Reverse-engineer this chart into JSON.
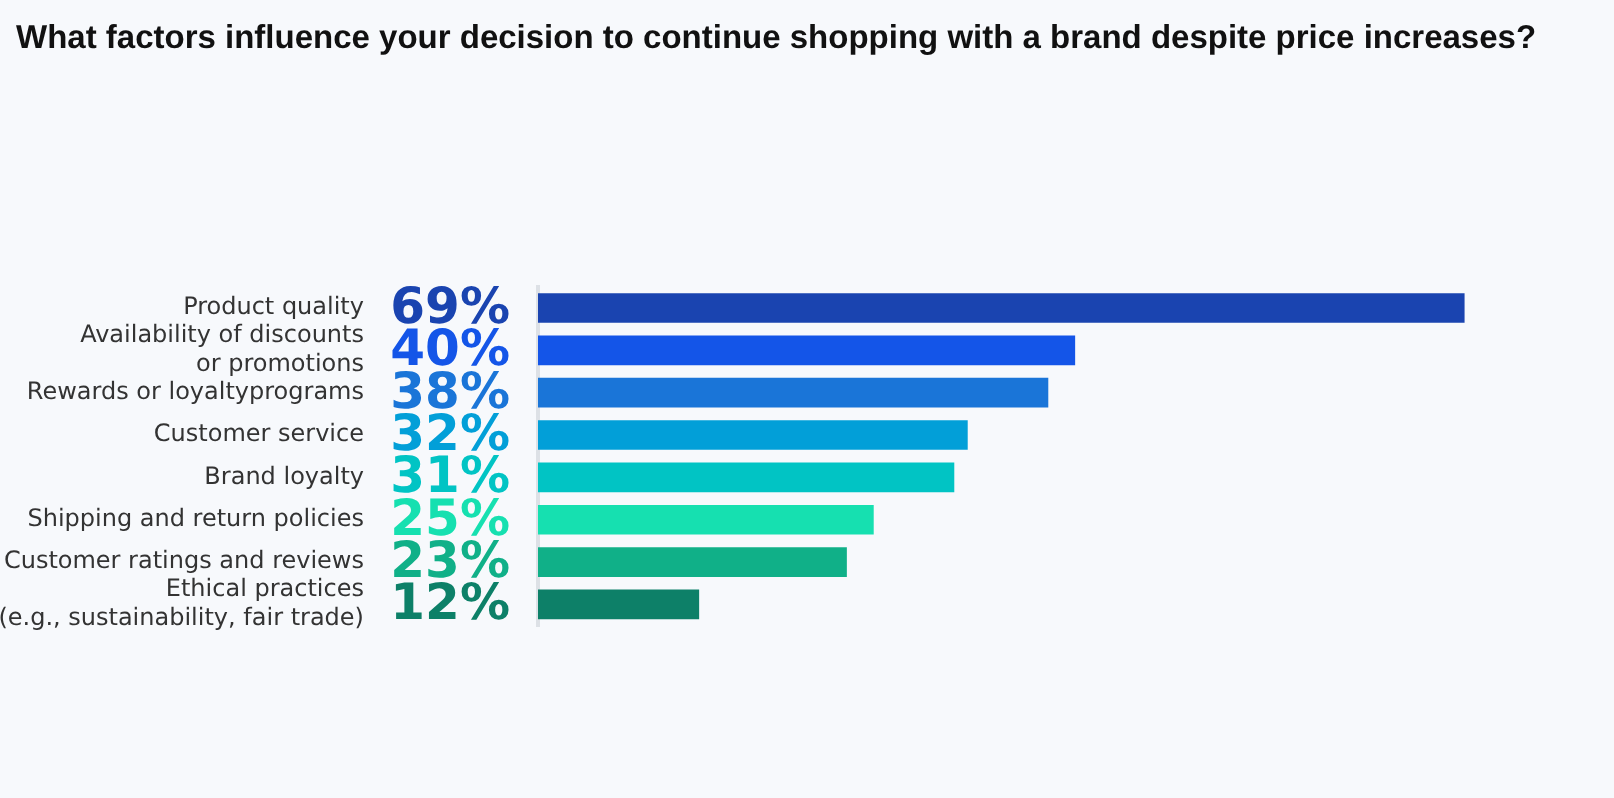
{
  "chart_data": {
    "type": "bar",
    "orientation": "horizontal",
    "title": "What factors influence your decision to continue shopping with a brand despite price increases?",
    "categories": [
      "Product quality",
      "Availability of discounts\nor promotions",
      "Rewards or loyaltyprograms",
      "Customer service",
      "Brand loyalty",
      "Shipping and return policies",
      "Customer ratings and reviews",
      "Ethical practices\n(e.g., sustainability, fair trade)"
    ],
    "values": [
      69,
      40,
      38,
      32,
      31,
      25,
      23,
      12
    ],
    "value_labels": [
      "69%",
      "40%",
      "38%",
      "32%",
      "31%",
      "25%",
      "23%",
      "12%"
    ],
    "colors": [
      "#1a44b0",
      "#1455e8",
      "#1a75d8",
      "#029fd8",
      "#01c4c4",
      "#16e0b0",
      "#10b088",
      "#0d8068"
    ],
    "grid": false,
    "legend": false
  }
}
